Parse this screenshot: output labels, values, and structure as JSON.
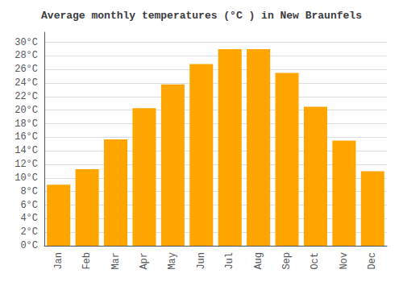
{
  "chart_data": {
    "type": "bar",
    "title": "Average monthly temperatures (°C ) in New Braunfels",
    "categories": [
      "Jan",
      "Feb",
      "Mar",
      "Apr",
      "May",
      "Jun",
      "Jul",
      "Aug",
      "Sep",
      "Oct",
      "Nov",
      "Dec"
    ],
    "values": [
      9.0,
      11.3,
      15.7,
      20.3,
      23.8,
      26.8,
      29.0,
      29.0,
      25.5,
      20.5,
      15.5,
      11.0
    ],
    "color": "#FFA500",
    "ylim": [
      0,
      31.5
    ],
    "yticks": [
      {
        "value": 0,
        "label": "0°C"
      },
      {
        "value": 2,
        "label": "2°C"
      },
      {
        "value": 4,
        "label": "4°C"
      },
      {
        "value": 6,
        "label": "6°C"
      },
      {
        "value": 8,
        "label": "8°C"
      },
      {
        "value": 10,
        "label": "10°C"
      },
      {
        "value": 12,
        "label": "12°C"
      },
      {
        "value": 14,
        "label": "14°C"
      },
      {
        "value": 16,
        "label": "16°C"
      },
      {
        "value": 18,
        "label": "18°C"
      },
      {
        "value": 20,
        "label": "20°C"
      },
      {
        "value": 22,
        "label": "22°C"
      },
      {
        "value": 24,
        "label": "24°C"
      },
      {
        "value": 26,
        "label": "26°C"
      },
      {
        "value": 28,
        "label": "28°C"
      },
      {
        "value": 30,
        "label": "30°C"
      }
    ],
    "grid": true
  }
}
